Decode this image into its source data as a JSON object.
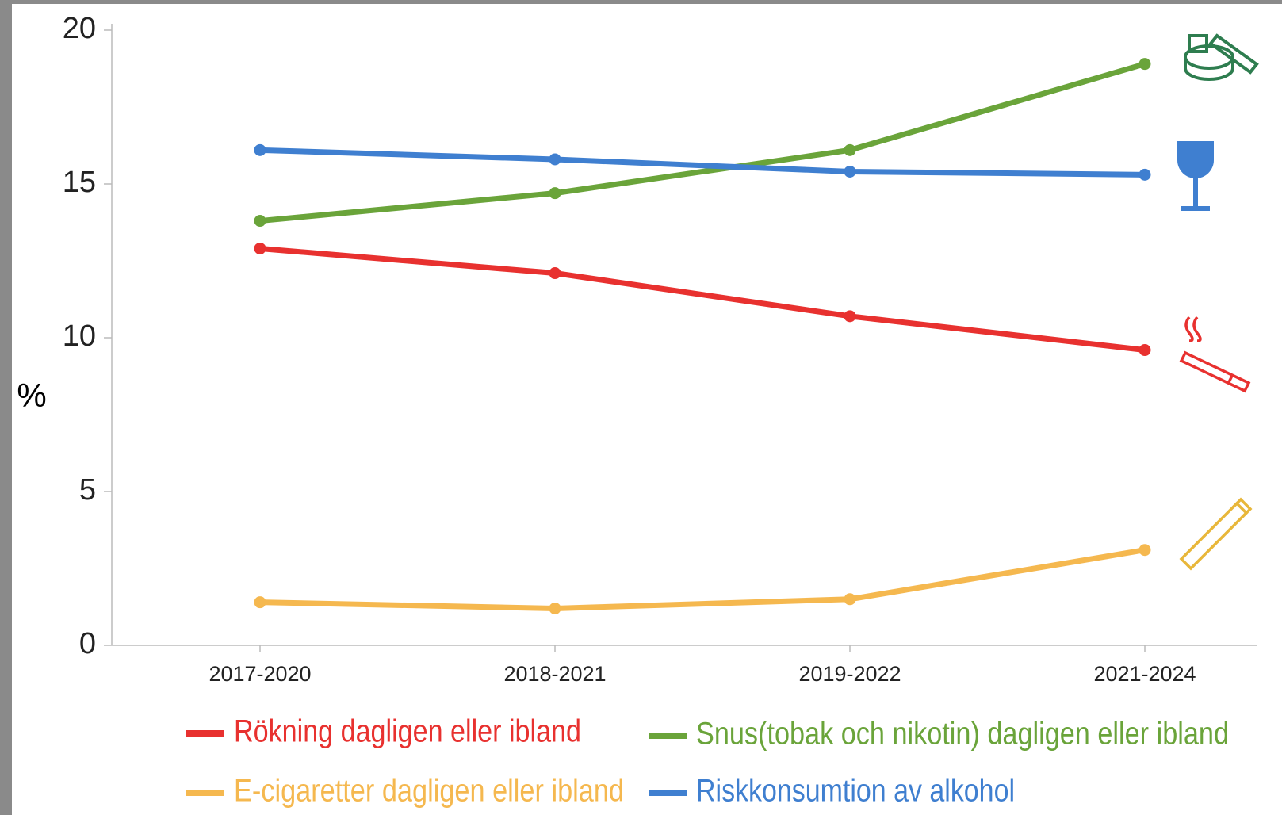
{
  "chart_data": {
    "type": "line",
    "y_label": "%",
    "categories": [
      "2017-2020",
      "2018-2021",
      "2019-2022",
      "2021-2024"
    ],
    "series": [
      {
        "name": "Rökning dagligen eller ibland",
        "color": "#e8312f",
        "values": [
          12.9,
          12.1,
          10.7,
          9.6
        ]
      },
      {
        "name": "Snus(tobak och nikotin) dagligen eller ibland",
        "color": "#6aa43a",
        "values": [
          13.8,
          14.7,
          16.1,
          18.9
        ]
      },
      {
        "name": "E-cigaretter dagligen eller ibland",
        "color": "#f5b84f",
        "values": [
          1.4,
          1.2,
          1.5,
          3.1
        ]
      },
      {
        "name": "Riskkonsumtion av alkohol",
        "color": "#3f7fd0",
        "values": [
          16.1,
          15.8,
          15.4,
          15.3
        ]
      }
    ],
    "ylim": [
      0,
      20
    ],
    "yticks": [
      0,
      5,
      10,
      15,
      20
    ],
    "grid": false,
    "legend": "bottom"
  }
}
